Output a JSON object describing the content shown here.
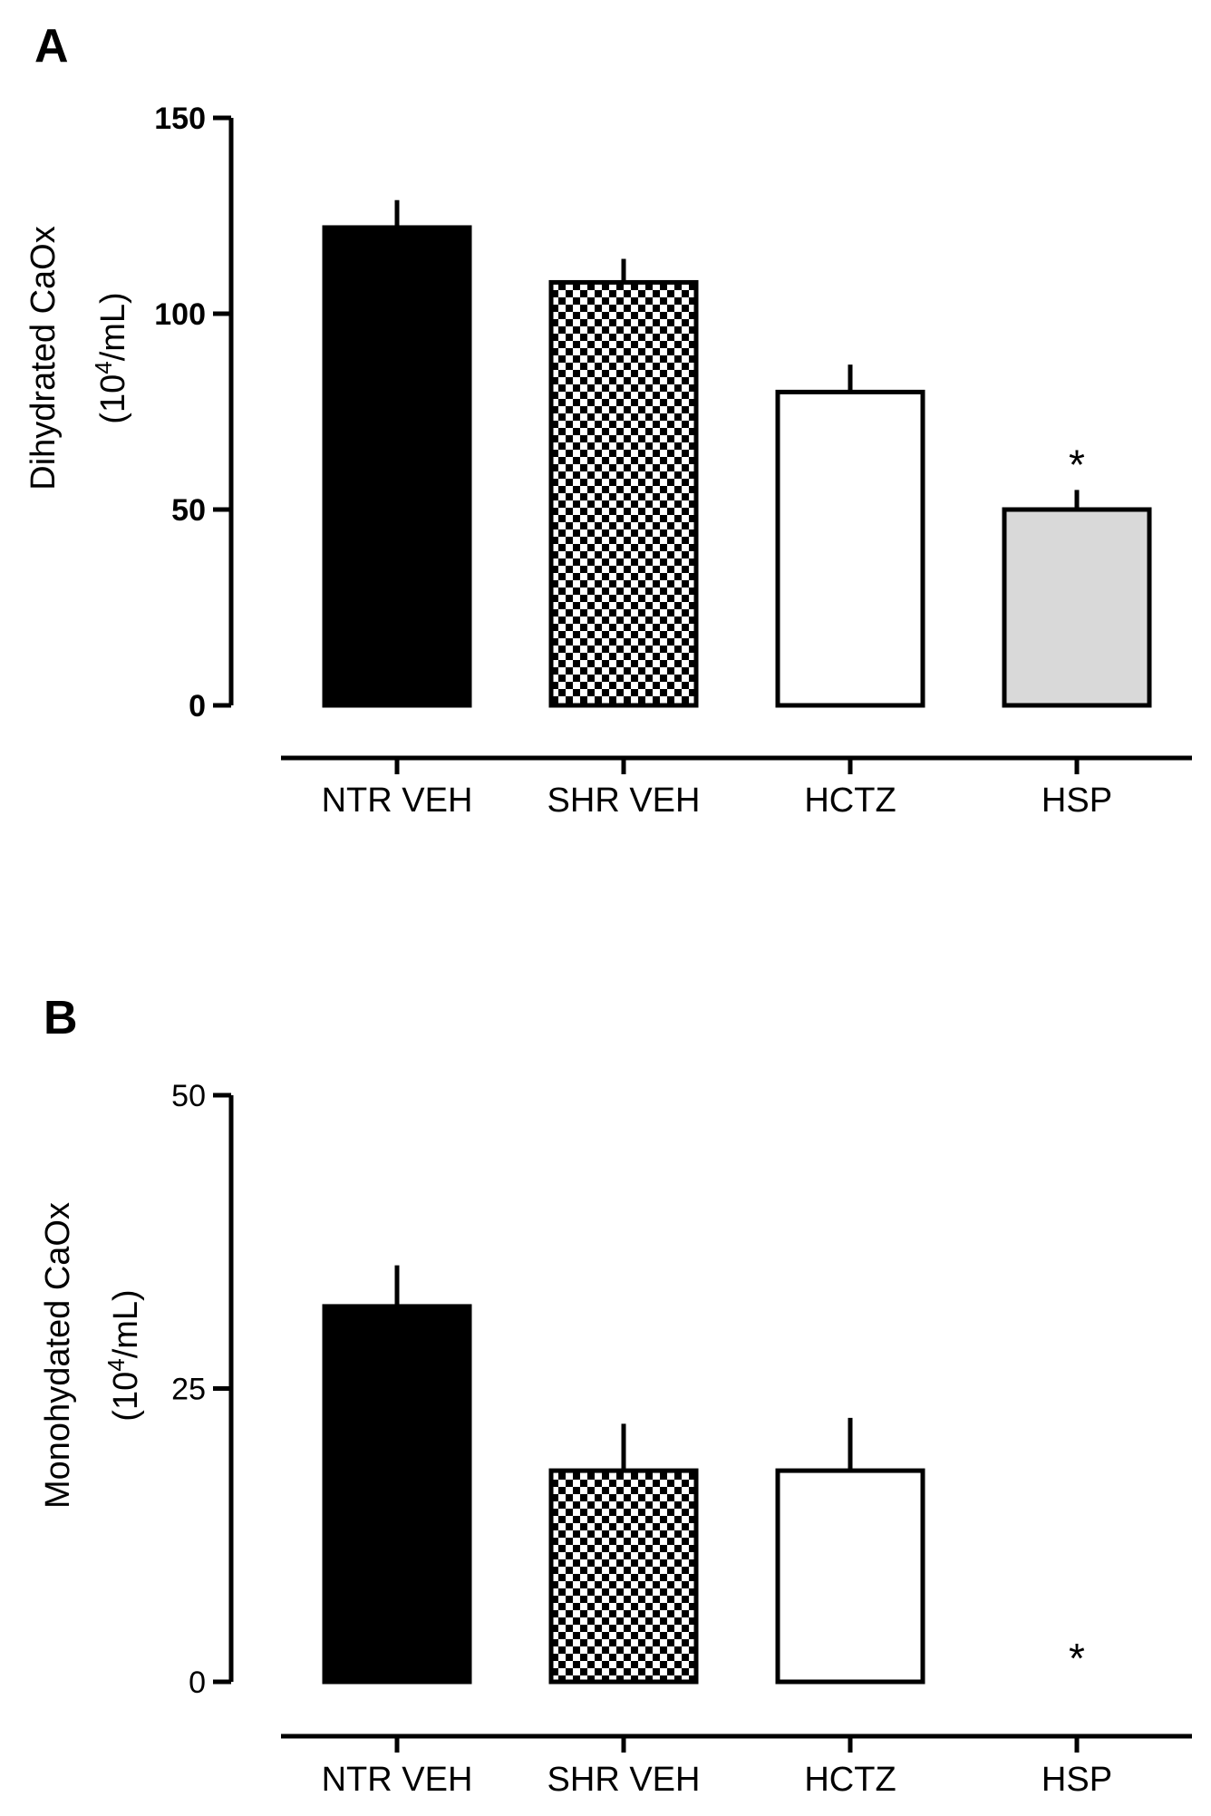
{
  "chart_data": [
    {
      "type": "bar",
      "panel": "A",
      "categories": [
        "NTR VEH",
        "SHR VEH",
        "HCTZ",
        "HSP"
      ],
      "values": [
        122,
        108,
        80,
        50
      ],
      "errors": [
        7,
        6,
        7,
        5
      ],
      "fills": [
        "#000000",
        "checker",
        "#ffffff",
        "#d9d9d9"
      ],
      "significance": [
        "",
        "",
        "",
        "*"
      ],
      "ylabel_line1": "Dihydrated CaOx",
      "ylabel_line2_prefix": "(10",
      "ylabel_line2_sup": "4",
      "ylabel_line2_suffix": "/mL)",
      "ylim": [
        0,
        150
      ],
      "yticks": [
        0,
        50,
        100,
        150
      ],
      "ytick_labels": [
        "0",
        "50",
        "100",
        "150"
      ]
    },
    {
      "type": "bar",
      "panel": "B",
      "categories": [
        "NTR VEH",
        "SHR VEH",
        "HCTZ",
        "HSP"
      ],
      "values": [
        32,
        18,
        18,
        0
      ],
      "errors": [
        3.5,
        4,
        4.5,
        0
      ],
      "fills": [
        "#000000",
        "checker",
        "#ffffff",
        "#d9d9d9"
      ],
      "significance": [
        "",
        "",
        "",
        "*"
      ],
      "ylabel_line1": "Monohydated CaOx",
      "ylabel_line2_prefix": "(10",
      "ylabel_line2_sup": "4",
      "ylabel_line2_suffix": "/mL)",
      "ylim": [
        0,
        50
      ],
      "yticks": [
        0,
        25,
        50
      ],
      "ytick_labels": [
        "0",
        "25",
        "50"
      ]
    }
  ]
}
